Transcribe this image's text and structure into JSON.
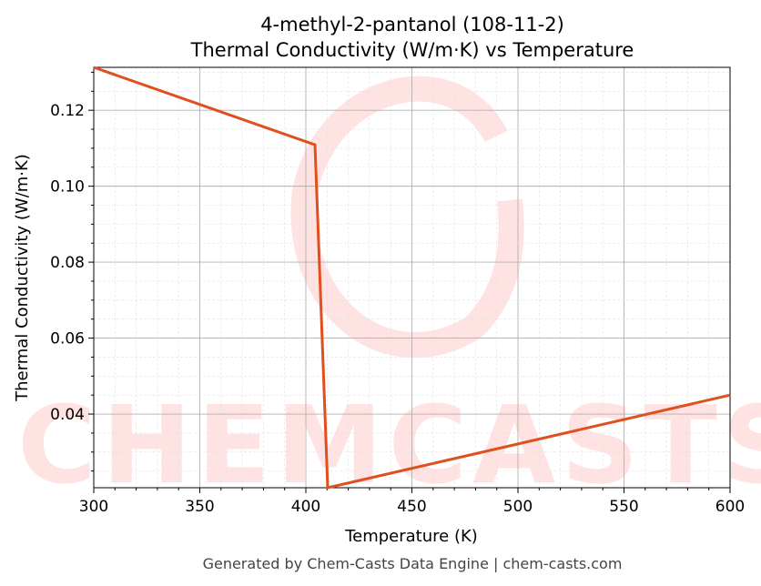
{
  "chart_data": {
    "type": "line",
    "title": "4-methyl-2-pantanol (108-11-2)",
    "subtitle": "Thermal Conductivity (W/m·K) vs Temperature",
    "xlabel": "Temperature (K)",
    "ylabel": "Thermal Conductivity (W/m·K)",
    "xlim": [
      300,
      600
    ],
    "ylim": [
      0.0206,
      0.1313
    ],
    "xticks": [
      300,
      350,
      400,
      450,
      500,
      550,
      600
    ],
    "xtick_labels": [
      "300",
      "350",
      "400",
      "450",
      "500",
      "550",
      "600"
    ],
    "yticks": [
      0.04,
      0.06,
      0.08,
      0.1,
      0.12
    ],
    "ytick_labels": [
      "0.04",
      "0.06",
      "0.08",
      "0.10",
      "0.12"
    ],
    "grid": true,
    "series": [
      {
        "color": "#e0501e",
        "x": [
          300,
          404.3,
          410.3,
          600
        ],
        "y": [
          0.1313,
          0.1109,
          0.0206,
          0.045
        ]
      }
    ]
  },
  "watermark": "CHEMCASTS",
  "footer": "Generated by Chem-Casts Data Engine | chem-casts.com"
}
